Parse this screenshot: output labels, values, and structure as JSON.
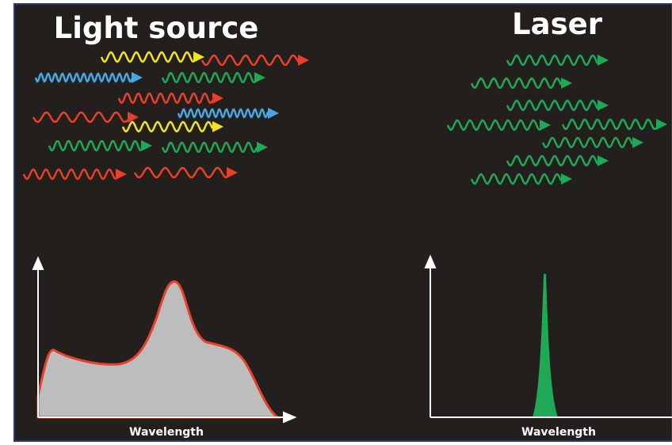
{
  "panels": [
    {
      "title": "Light source",
      "x_label": "Wavelength"
    },
    {
      "title": "Laser",
      "x_label": "Wavelength"
    }
  ]
}
